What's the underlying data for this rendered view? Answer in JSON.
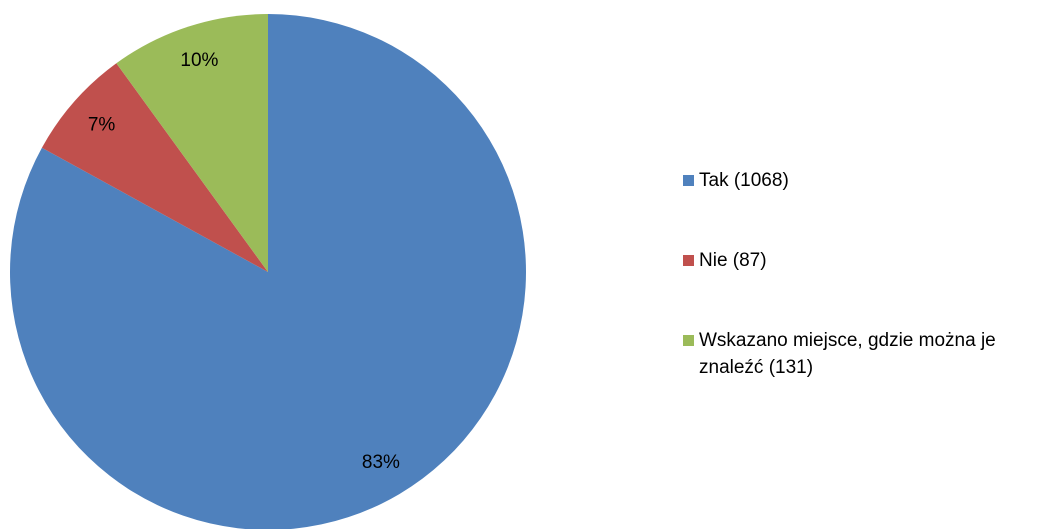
{
  "chart_data": {
    "type": "pie",
    "categories": [
      "Tak (1068)",
      "Nie (87)",
      "Wskazano miejsce, gdzie można je znaleźć (131)"
    ],
    "values": [
      83,
      7,
      10
    ],
    "value_labels": [
      "83%",
      "7%",
      "10%"
    ],
    "colors": [
      "#4f81bd",
      "#c0504d",
      "#9bbb59"
    ],
    "legend": "right"
  }
}
